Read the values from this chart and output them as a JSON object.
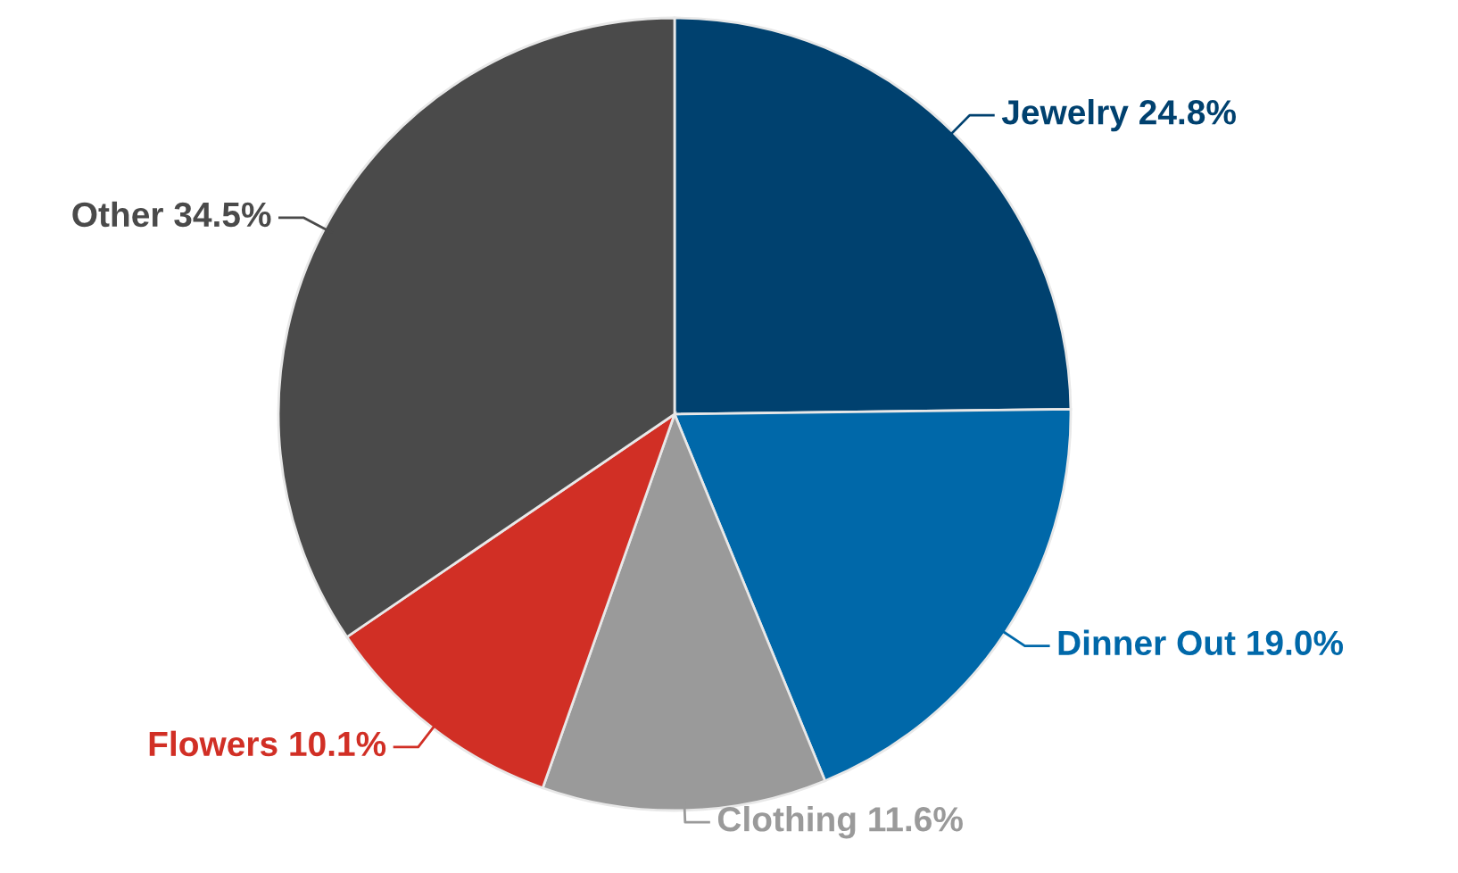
{
  "chart_data": {
    "type": "pie",
    "categories": [
      "Jewelry",
      "Dinner Out",
      "Clothing",
      "Flowers",
      "Other"
    ],
    "values": [
      24.8,
      19.0,
      11.6,
      10.1,
      34.5
    ],
    "value_labels": [
      "24.8%",
      "19.0%",
      "11.6%",
      "10.1%",
      "34.5%"
    ],
    "colors": [
      "#00416f",
      "#0068a9",
      "#9a9a9a",
      "#d12f25",
      "#4a4a4a"
    ],
    "legend": false
  }
}
